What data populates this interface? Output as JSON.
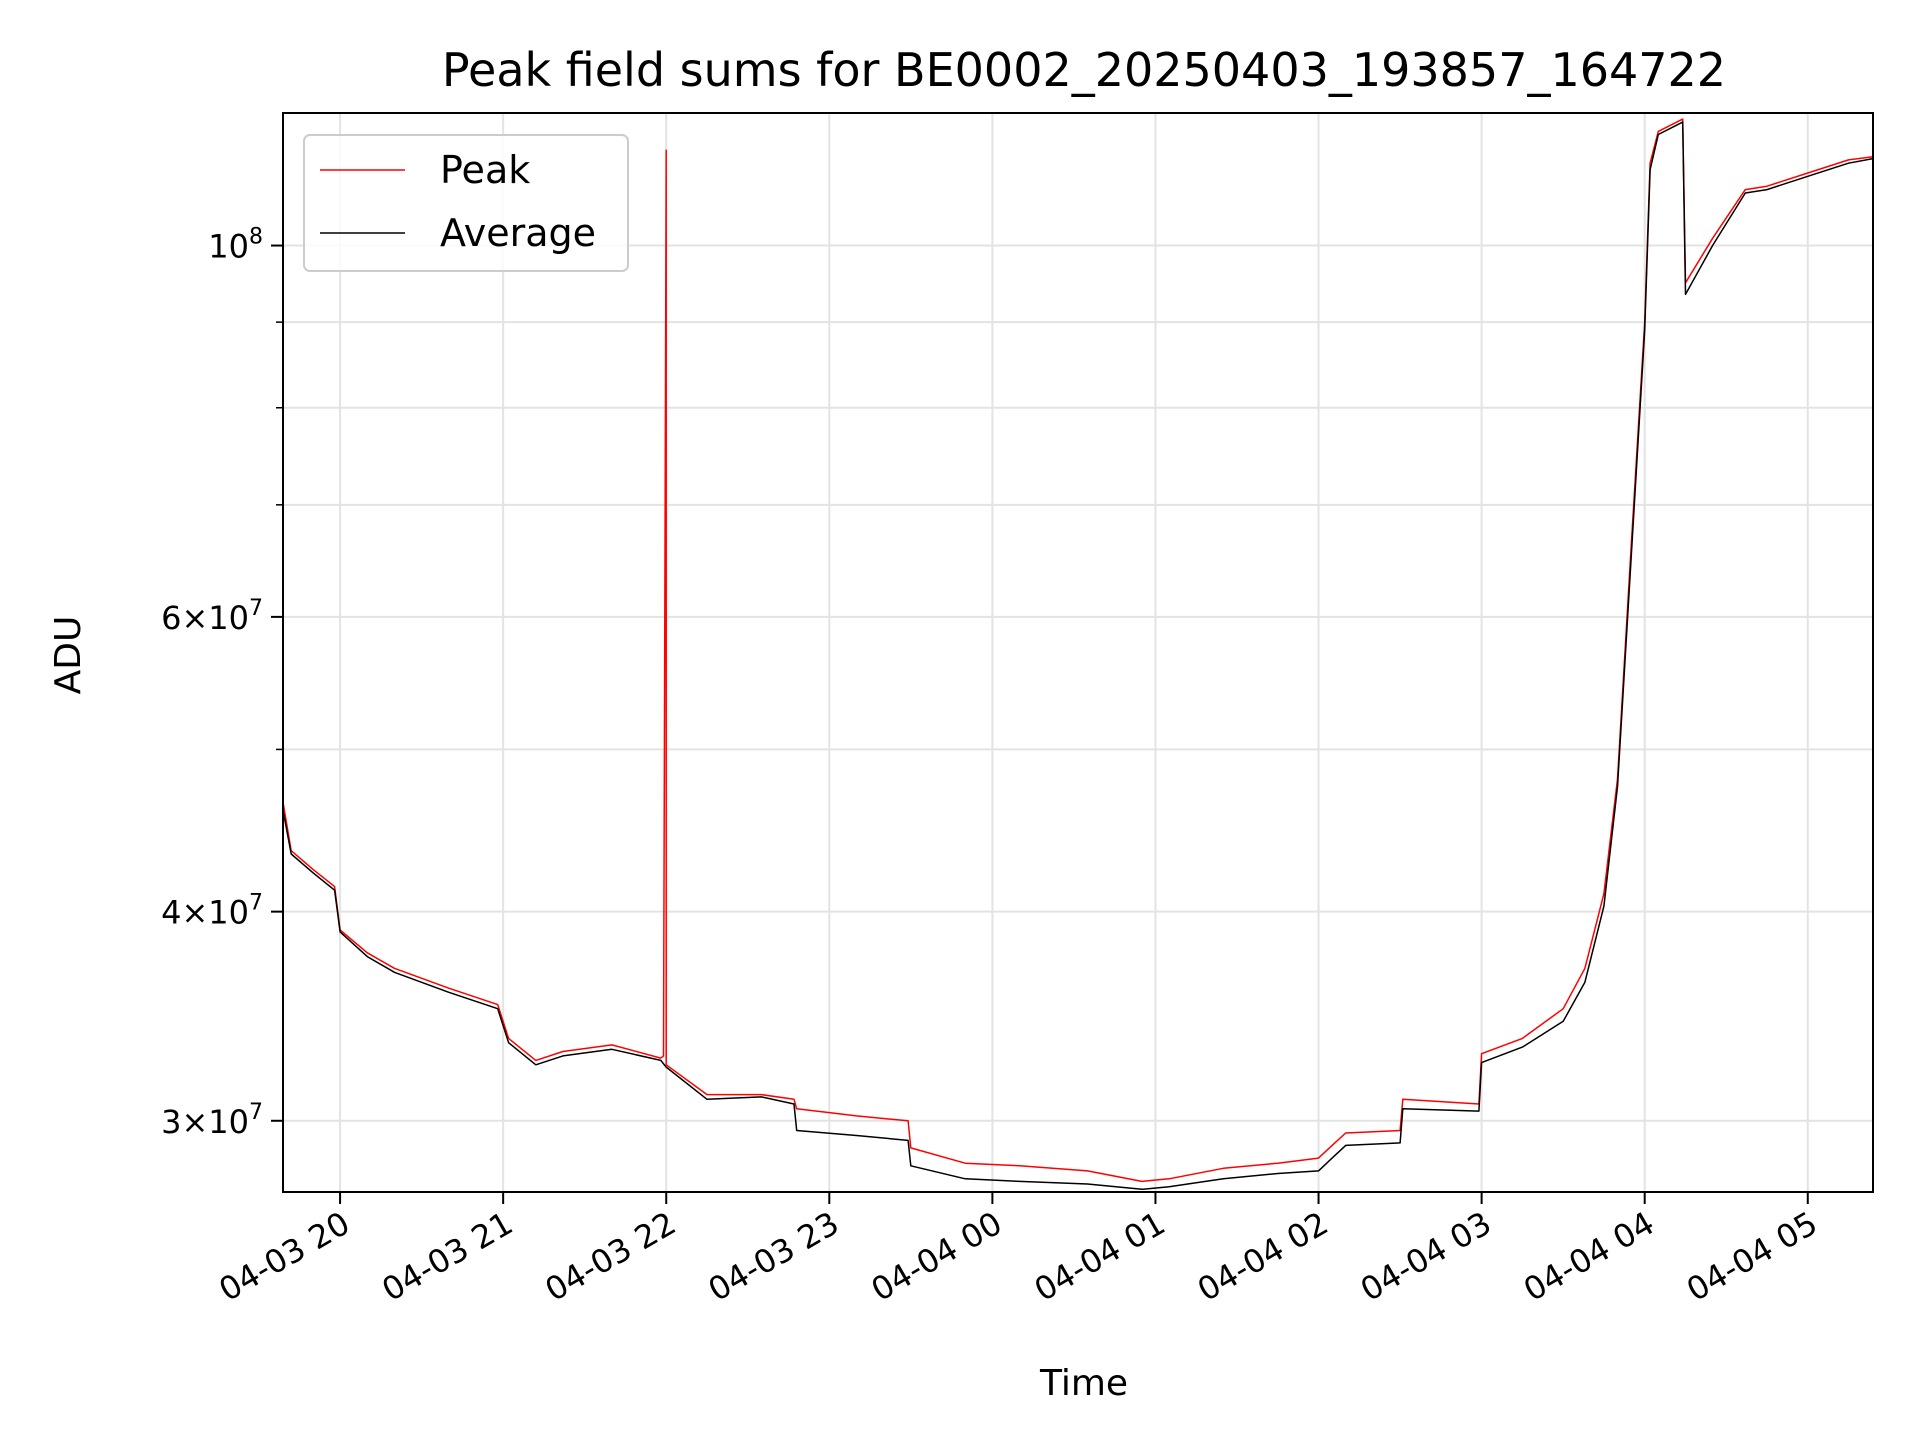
{
  "chart_data": {
    "type": "line",
    "title": "Peak field sums for BE0002_20250403_193857_164722",
    "xlabel": "Time",
    "ylabel": "ADU",
    "y_scale": "log",
    "x_range": [
      "2025-04-03 19:39",
      "2025-04-04 05:24"
    ],
    "ylim": [
      27200000,
      120000000
    ],
    "grid": true,
    "legend_position": "top-left",
    "x_ticks": [
      {
        "t": "2025-04-03 20:00",
        "label": "04-03 20"
      },
      {
        "t": "2025-04-03 21:00",
        "label": "04-03 21"
      },
      {
        "t": "2025-04-03 22:00",
        "label": "04-03 22"
      },
      {
        "t": "2025-04-03 23:00",
        "label": "04-03 23"
      },
      {
        "t": "2025-04-04 00:00",
        "label": "04-04 00"
      },
      {
        "t": "2025-04-04 01:00",
        "label": "04-04 01"
      },
      {
        "t": "2025-04-04 02:00",
        "label": "04-04 02"
      },
      {
        "t": "2025-04-04 03:00",
        "label": "04-04 03"
      },
      {
        "t": "2025-04-04 04:00",
        "label": "04-04 04"
      },
      {
        "t": "2025-04-04 05:00",
        "label": "04-04 05"
      }
    ],
    "y_major_ticks": [
      {
        "value": 30000000,
        "mantissa": "3",
        "exp": "7"
      },
      {
        "value": 40000000,
        "mantissa": "4",
        "exp": "7"
      },
      {
        "value": 60000000,
        "mantissa": "6",
        "exp": "7"
      },
      {
        "value": 100000000,
        "mantissa": "",
        "exp": "8"
      }
    ],
    "y_minor_ticks": [
      50000000,
      70000000,
      80000000,
      90000000
    ],
    "series": [
      {
        "name": "Peak",
        "color": "#ff0000",
        "points": [
          [
            "2025-04-03 19:39",
            46500000
          ],
          [
            "2025-04-03 19:42",
            43500000
          ],
          [
            "2025-04-03 19:50",
            42400000
          ],
          [
            "2025-04-03 19:58",
            41400000
          ],
          [
            "2025-04-03 20:00",
            39000000
          ],
          [
            "2025-04-03 20:10",
            37800000
          ],
          [
            "2025-04-03 20:20",
            37000000
          ],
          [
            "2025-04-03 20:40",
            36000000
          ],
          [
            "2025-04-03 20:58",
            35200000
          ],
          [
            "2025-04-03 21:02",
            33600000
          ],
          [
            "2025-04-03 21:12",
            32600000
          ],
          [
            "2025-04-03 21:22",
            33000000
          ],
          [
            "2025-04-03 21:40",
            33300000
          ],
          [
            "2025-04-03 21:58",
            32700000
          ],
          [
            "2025-04-03 21:59",
            32800000
          ],
          [
            "2025-04-03 22:00",
            114000000
          ],
          [
            "2025-04-03 22:00",
            32400000
          ],
          [
            "2025-04-03 22:15",
            31100000
          ],
          [
            "2025-04-03 22:35",
            31100000
          ],
          [
            "2025-04-03 22:47",
            30900000
          ],
          [
            "2025-04-03 22:48",
            30500000
          ],
          [
            "2025-04-03 23:10",
            30200000
          ],
          [
            "2025-04-03 23:29",
            30000000
          ],
          [
            "2025-04-03 23:30",
            28900000
          ],
          [
            "2025-04-03 23:50",
            28300000
          ],
          [
            "2025-04-04 00:10",
            28200000
          ],
          [
            "2025-04-04 00:35",
            28000000
          ],
          [
            "2025-04-04 00:55",
            27600000
          ],
          [
            "2025-04-04 01:05",
            27700000
          ],
          [
            "2025-04-04 01:25",
            28100000
          ],
          [
            "2025-04-04 01:45",
            28300000
          ],
          [
            "2025-04-04 02:00",
            28500000
          ],
          [
            "2025-04-04 02:05",
            29000000
          ],
          [
            "2025-04-04 02:10",
            29500000
          ],
          [
            "2025-04-04 02:30",
            29600000
          ],
          [
            "2025-04-04 02:31",
            30900000
          ],
          [
            "2025-04-04 02:59",
            30700000
          ],
          [
            "2025-04-04 03:00",
            32900000
          ],
          [
            "2025-04-04 03:15",
            33600000
          ],
          [
            "2025-04-04 03:30",
            35000000
          ],
          [
            "2025-04-04 03:38",
            37000000
          ],
          [
            "2025-04-04 03:45",
            41000000
          ],
          [
            "2025-04-04 03:50",
            48000000
          ],
          [
            "2025-04-04 03:55",
            66000000
          ],
          [
            "2025-04-04 04:00",
            90000000
          ],
          [
            "2025-04-04 04:02",
            112000000
          ],
          [
            "2025-04-04 04:05",
            117000000
          ],
          [
            "2025-04-04 04:14",
            119000000
          ],
          [
            "2025-04-04 04:15",
            95000000
          ],
          [
            "2025-04-04 04:25",
            101000000
          ],
          [
            "2025-04-04 04:37",
            108000000
          ],
          [
            "2025-04-04 04:45",
            108500000
          ],
          [
            "2025-04-04 05:00",
            110500000
          ],
          [
            "2025-04-04 05:15",
            112500000
          ],
          [
            "2025-04-04 05:24",
            113000000
          ]
        ]
      },
      {
        "name": "Average",
        "color": "#000000",
        "points": [
          [
            "2025-04-03 19:39",
            46000000
          ],
          [
            "2025-04-03 19:42",
            43300000
          ],
          [
            "2025-04-03 19:50",
            42200000
          ],
          [
            "2025-04-03 19:58",
            41200000
          ],
          [
            "2025-04-03 20:00",
            38900000
          ],
          [
            "2025-04-03 20:10",
            37600000
          ],
          [
            "2025-04-03 20:20",
            36800000
          ],
          [
            "2025-04-03 20:40",
            35800000
          ],
          [
            "2025-04-03 20:58",
            35000000
          ],
          [
            "2025-04-03 21:02",
            33400000
          ],
          [
            "2025-04-03 21:12",
            32400000
          ],
          [
            "2025-04-03 21:22",
            32800000
          ],
          [
            "2025-04-03 21:40",
            33100000
          ],
          [
            "2025-04-03 21:58",
            32600000
          ],
          [
            "2025-04-03 22:00",
            32300000
          ],
          [
            "2025-04-03 22:15",
            30900000
          ],
          [
            "2025-04-03 22:35",
            31000000
          ],
          [
            "2025-04-03 22:47",
            30700000
          ],
          [
            "2025-04-03 22:48",
            29600000
          ],
          [
            "2025-04-03 23:10",
            29400000
          ],
          [
            "2025-04-03 23:29",
            29200000
          ],
          [
            "2025-04-03 23:30",
            28200000
          ],
          [
            "2025-04-03 23:50",
            27700000
          ],
          [
            "2025-04-04 00:10",
            27600000
          ],
          [
            "2025-04-04 00:35",
            27500000
          ],
          [
            "2025-04-04 00:55",
            27300000
          ],
          [
            "2025-04-04 01:05",
            27400000
          ],
          [
            "2025-04-04 01:25",
            27700000
          ],
          [
            "2025-04-04 01:45",
            27900000
          ],
          [
            "2025-04-04 02:00",
            28000000
          ],
          [
            "2025-04-04 02:05",
            28500000
          ],
          [
            "2025-04-04 02:10",
            29000000
          ],
          [
            "2025-04-04 02:30",
            29100000
          ],
          [
            "2025-04-04 02:31",
            30500000
          ],
          [
            "2025-04-04 02:59",
            30400000
          ],
          [
            "2025-04-04 03:00",
            32500000
          ],
          [
            "2025-04-04 03:15",
            33200000
          ],
          [
            "2025-04-04 03:30",
            34400000
          ],
          [
            "2025-04-04 03:38",
            36300000
          ],
          [
            "2025-04-04 03:45",
            40300000
          ],
          [
            "2025-04-04 03:50",
            47500000
          ],
          [
            "2025-04-04 03:55",
            65000000
          ],
          [
            "2025-04-04 04:00",
            89000000
          ],
          [
            "2025-04-04 04:02",
            111000000
          ],
          [
            "2025-04-04 04:05",
            116500000
          ],
          [
            "2025-04-04 04:14",
            118500000
          ],
          [
            "2025-04-04 04:15",
            93500000
          ],
          [
            "2025-04-04 04:25",
            100000000
          ],
          [
            "2025-04-04 04:37",
            107500000
          ],
          [
            "2025-04-04 04:45",
            108000000
          ],
          [
            "2025-04-04 05:00",
            110000000
          ],
          [
            "2025-04-04 05:15",
            112000000
          ],
          [
            "2025-04-04 05:24",
            112700000
          ]
        ]
      }
    ]
  }
}
